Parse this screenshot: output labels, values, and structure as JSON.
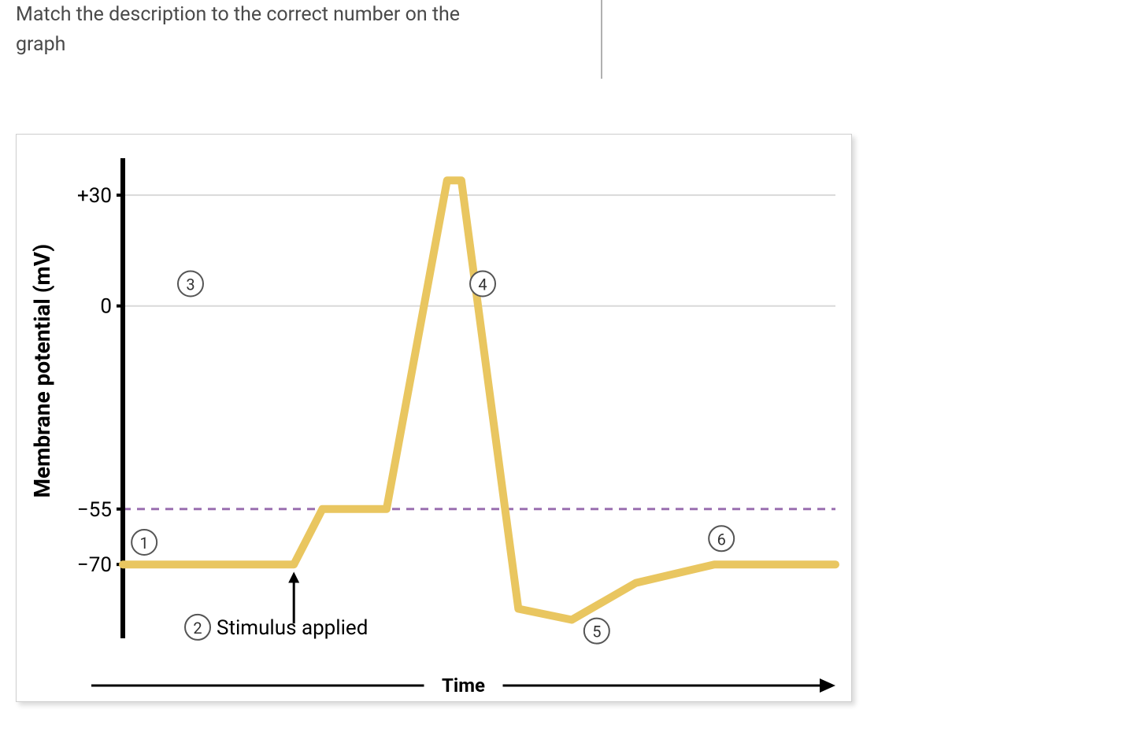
{
  "instruction": "Match the description to the correct number on the graph",
  "chart": {
    "type": "line",
    "ylabel": "Membrane potential (mV)",
    "xlabel": "Time",
    "yticks": [
      {
        "value": 30,
        "label": "+30"
      },
      {
        "value": 0,
        "label": "0"
      },
      {
        "value": -55,
        "label": "−55"
      },
      {
        "value": -70,
        "label": "−70"
      }
    ],
    "ylim": [
      -90,
      40
    ],
    "xlim": [
      0,
      10
    ],
    "curve_color": "#e9c660",
    "curve_width": 10,
    "gridline_color": "#d9d9d9",
    "threshold_color": "#9a6fb0",
    "threshold_dash": "10,8",
    "axis_color": "#000000",
    "background_color": "#ffffff",
    "curve_points": [
      {
        "x": 0.0,
        "y": -70
      },
      {
        "x": 2.4,
        "y": -70
      },
      {
        "x": 2.8,
        "y": -55
      },
      {
        "x": 3.7,
        "y": -55
      },
      {
        "x": 4.55,
        "y": 34
      },
      {
        "x": 4.75,
        "y": 34
      },
      {
        "x": 5.55,
        "y": -82
      },
      {
        "x": 6.3,
        "y": -85
      },
      {
        "x": 7.2,
        "y": -75
      },
      {
        "x": 8.3,
        "y": -70
      },
      {
        "x": 10.0,
        "y": -70
      }
    ],
    "stimulus_arrow": {
      "x": 2.4,
      "y_from": -86,
      "y_to": -72
    },
    "stimulus_label": "Stimulus applied",
    "markers": [
      {
        "id": "1",
        "x": 0.3,
        "y": -64
      },
      {
        "id": "2",
        "x": 1.05,
        "y": -87,
        "attached_label": "Stimulus applied"
      },
      {
        "id": "3",
        "x": 0.95,
        "y": 6
      },
      {
        "id": "4",
        "x": 5.05,
        "y": 6
      },
      {
        "id": "5",
        "x": 6.65,
        "y": -88
      },
      {
        "id": "6",
        "x": 8.4,
        "y": -63
      }
    ],
    "marker_radius": 16,
    "marker_stroke": "#555555",
    "label_fontsize": 26,
    "ylabel_fontsize": 28,
    "xlabel_fontsize": 24
  }
}
